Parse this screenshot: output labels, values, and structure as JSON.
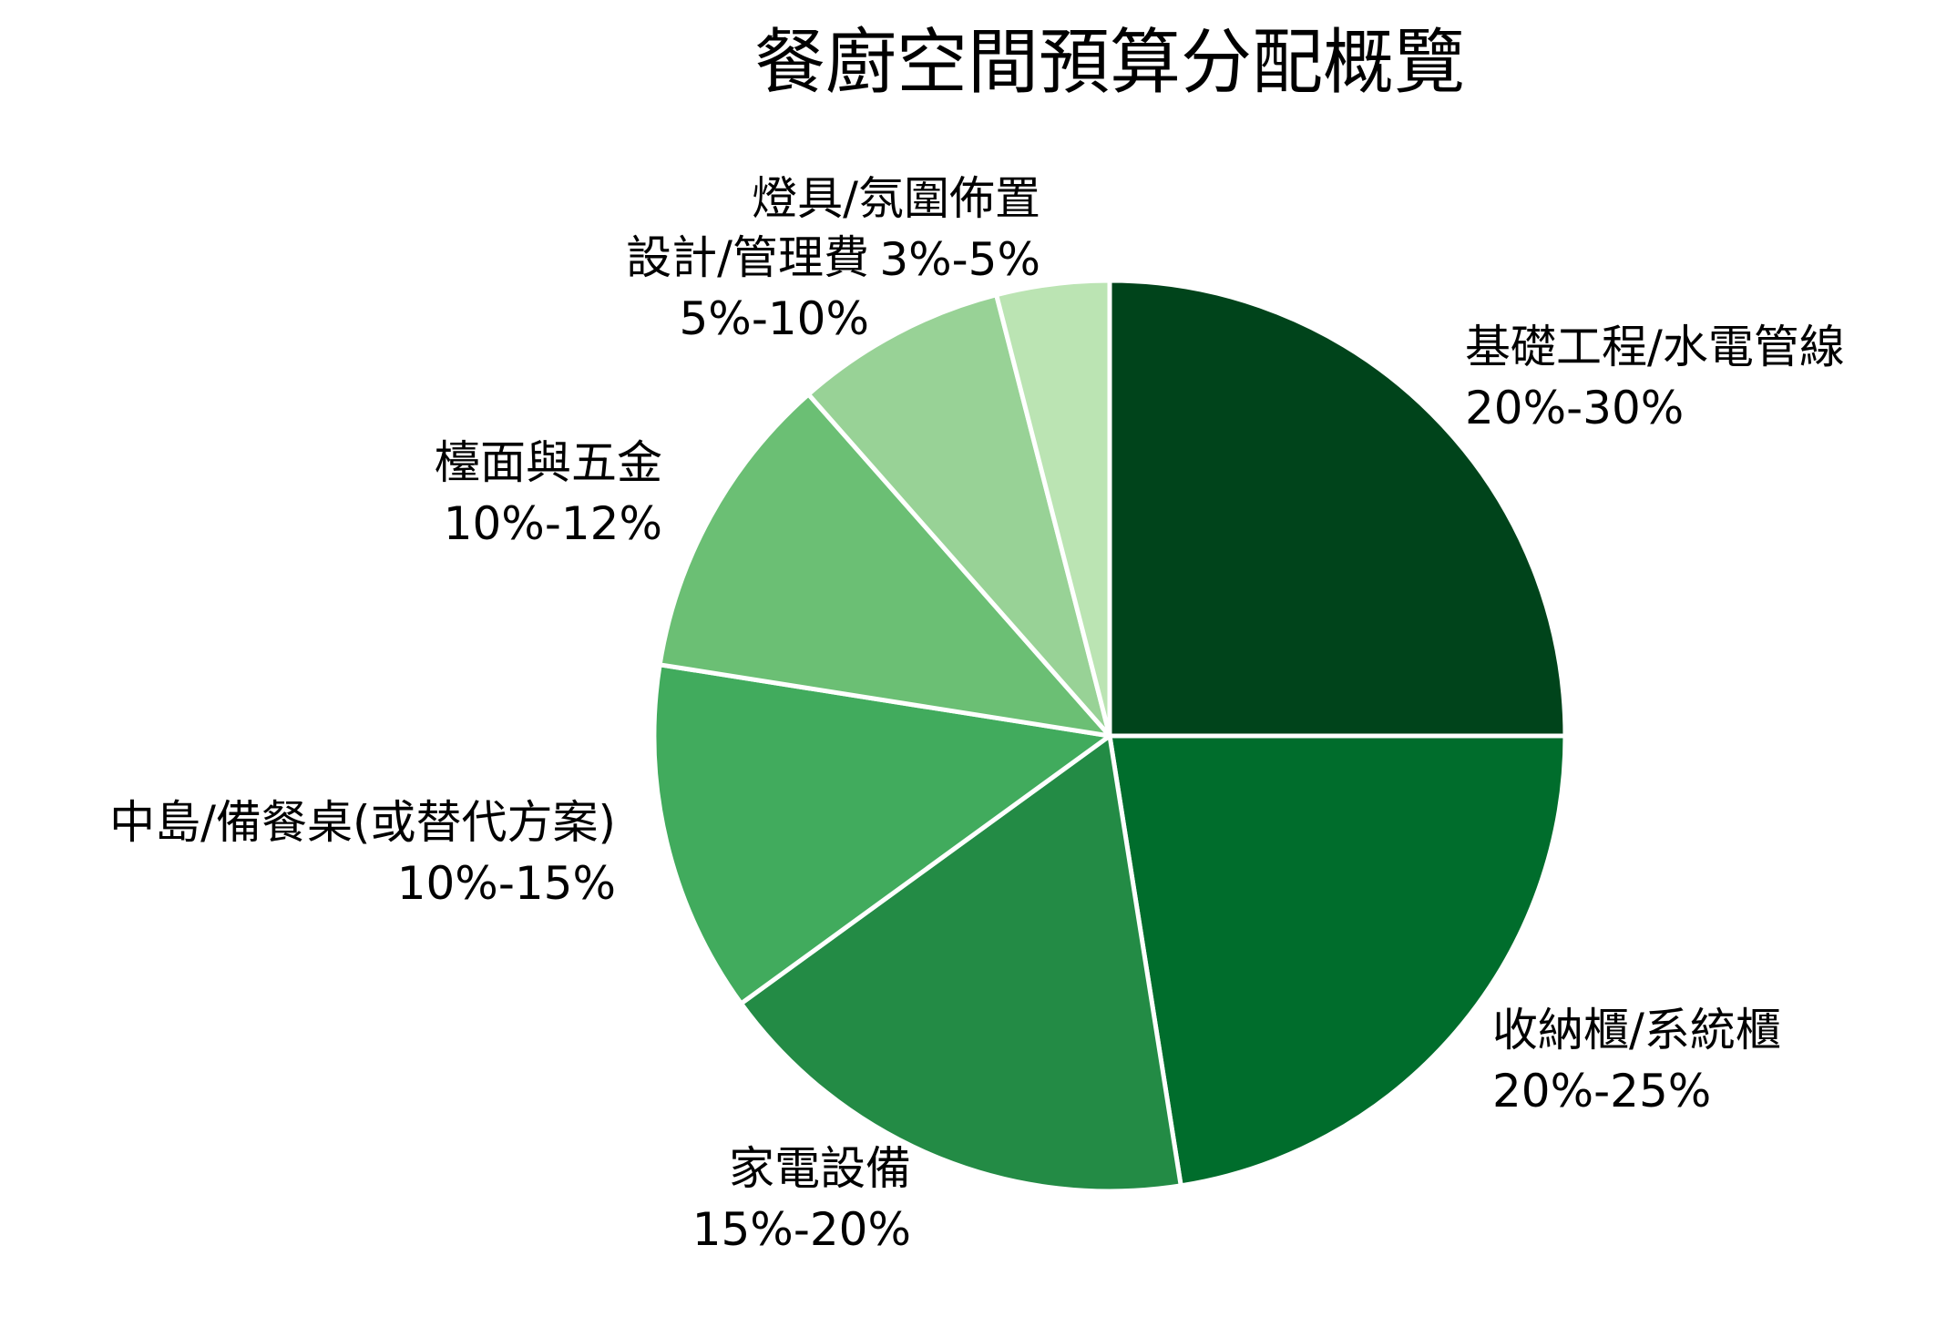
{
  "chart_data": {
    "type": "pie",
    "title": "餐廚空間預算分配概覽",
    "slices": [
      {
        "label": "基礎工程/水電管線",
        "range": "20%-30%",
        "value": 25,
        "color": "#00441b"
      },
      {
        "label": "收納櫃/系統櫃",
        "range": "20%-25%",
        "value": 22.5,
        "color": "#006d2c"
      },
      {
        "label": "家電設備",
        "range": "15%-20%",
        "value": 17.5,
        "color": "#238b45"
      },
      {
        "label": "中島/備餐桌(或替代方案)",
        "range": "10%-15%",
        "value": 12.5,
        "color": "#41ab5d"
      },
      {
        "label": "檯面與五金",
        "range": "10%-12%",
        "value": 11,
        "color": "#6bbf74"
      },
      {
        "label": "設計/管理費",
        "range": "5%-10%",
        "value": 7.5,
        "color": "#98d296"
      },
      {
        "label": "燈具/氛圍佈置",
        "range": "3%-5%",
        "value": 4,
        "color": "#bbe4b3"
      }
    ],
    "start_angle": "12 o'clock",
    "direction": "clockwise",
    "legend": "none"
  }
}
